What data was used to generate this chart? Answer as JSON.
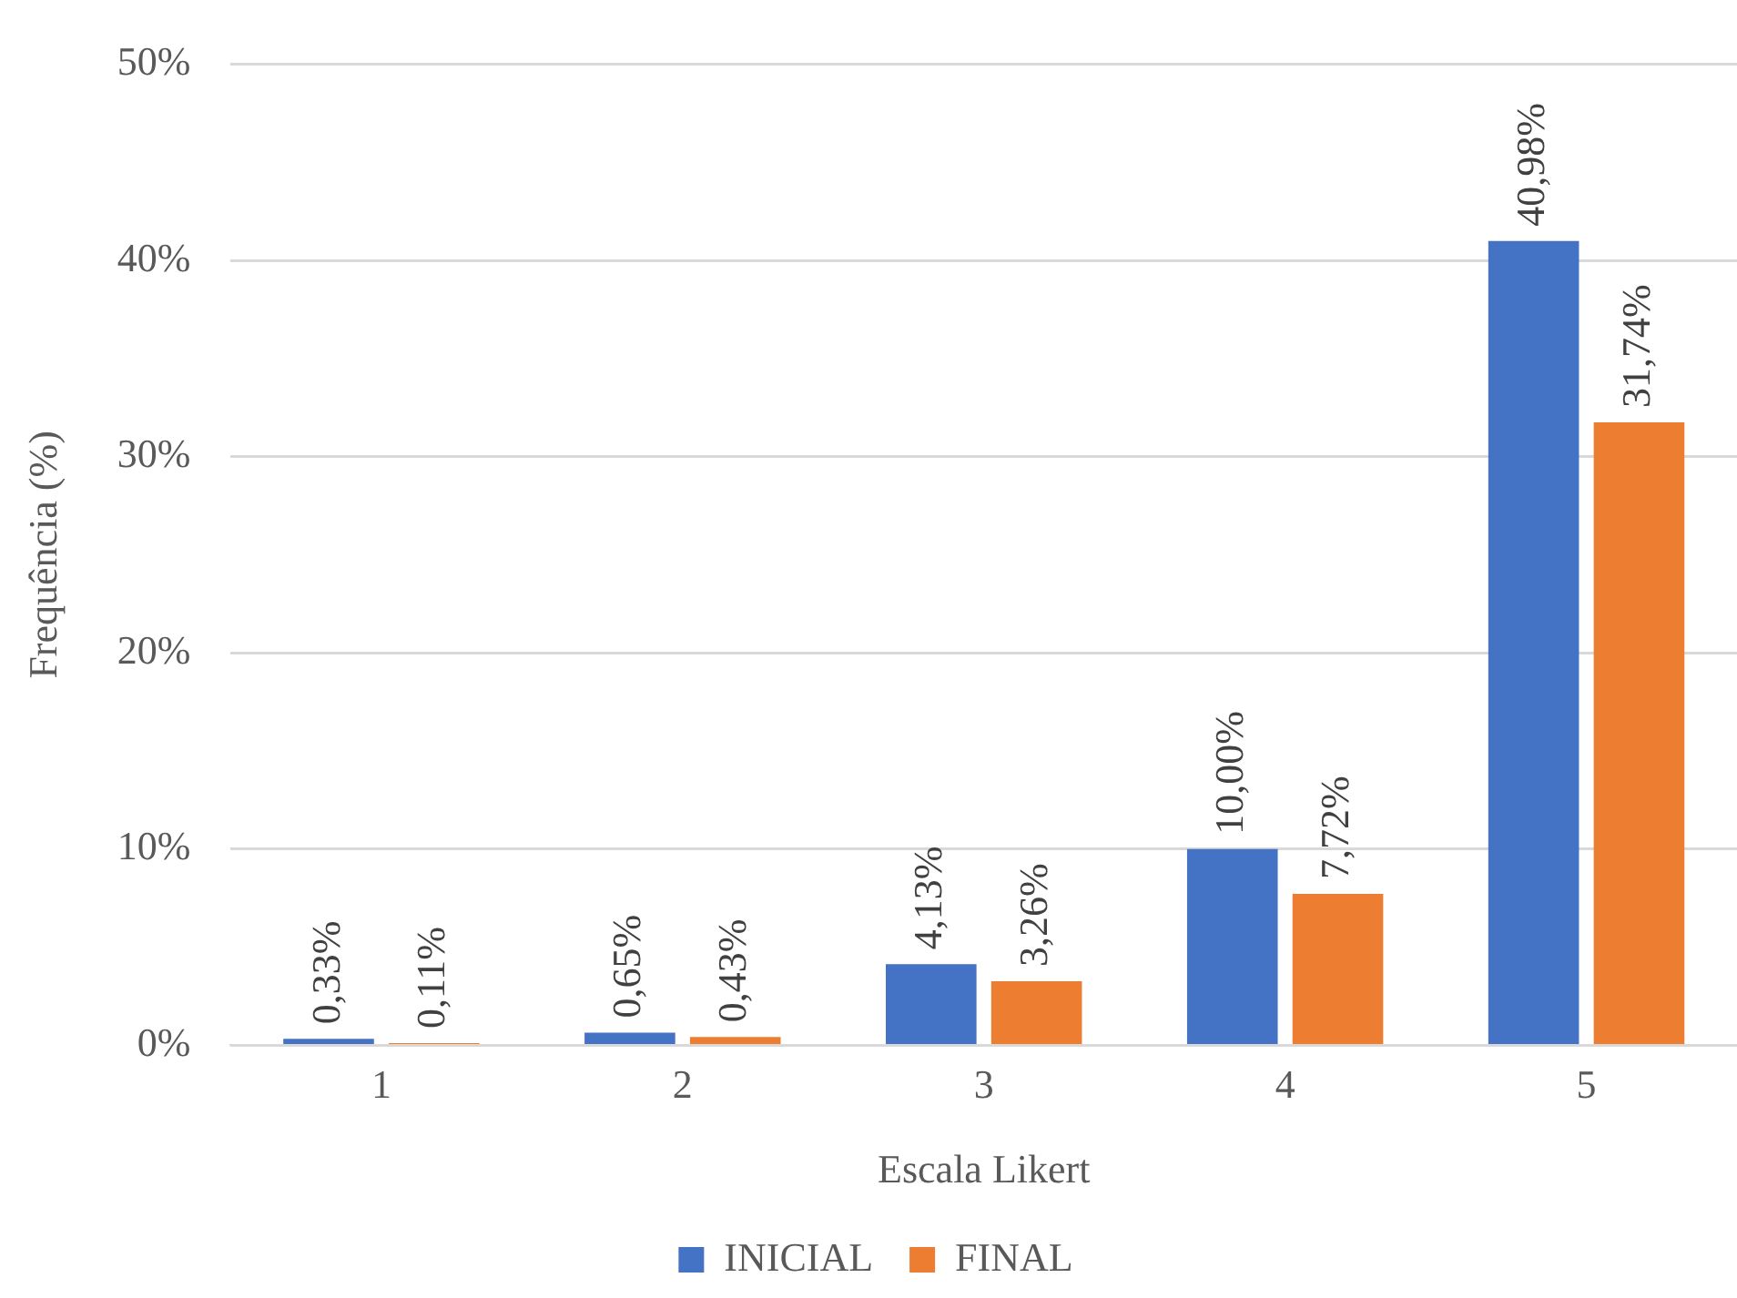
{
  "chart_data": {
    "type": "bar",
    "xlabel": "Escala Likert",
    "ylabel": "Frequência (%)",
    "categories": [
      "1",
      "2",
      "3",
      "4",
      "5"
    ],
    "series": [
      {
        "name": "INICIAL",
        "color": "#4472c4",
        "values": [
          0.33,
          0.65,
          4.13,
          10.0,
          40.98
        ],
        "value_labels": [
          "0,33%",
          "0,65%",
          "4,13%",
          "10,00%",
          "40,98%"
        ]
      },
      {
        "name": "FINAL",
        "color": "#ed7d31",
        "values": [
          0.11,
          0.43,
          3.26,
          7.72,
          31.74
        ],
        "value_labels": [
          "0,11%",
          "0,43%",
          "3,26%",
          "7,72%",
          "31,74%"
        ]
      }
    ],
    "ylim": [
      0,
      50
    ],
    "yticks": [
      {
        "value": 0,
        "label": "0%"
      },
      {
        "value": 10,
        "label": "10%"
      },
      {
        "value": 20,
        "label": "20%"
      },
      {
        "value": 30,
        "label": "30%"
      },
      {
        "value": 40,
        "label": "40%"
      },
      {
        "value": 50,
        "label": "50%"
      }
    ],
    "grid": "y",
    "legend": "bottom"
  }
}
